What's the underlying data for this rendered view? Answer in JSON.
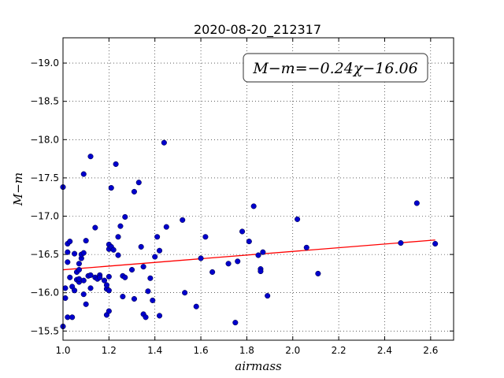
{
  "chart_data": {
    "type": "scatter",
    "title": "2020-08-20_212317",
    "xlabel": "airmass",
    "ylabel": "M−m",
    "xlim": [
      1.0,
      2.7
    ],
    "ylim": [
      -19.33,
      -15.38
    ],
    "y_inverted": true,
    "grid": true,
    "grid_style": "dotted",
    "x_ticks": [
      "1.0",
      "1.2",
      "1.4",
      "1.6",
      "1.8",
      "2.0",
      "2.2",
      "2.4",
      "2.6"
    ],
    "y_ticks": [
      "−15.5",
      "−16.0",
      "−16.5",
      "−17.0",
      "−17.5",
      "−18.0",
      "−18.5",
      "−19.0"
    ],
    "annotation": "M−m=−0.24χ−16.06",
    "fit": {
      "slope": -0.24,
      "intercept": -16.06,
      "x_range": [
        1.0,
        2.62
      ],
      "color": "#ff0000"
    },
    "marker_color": "#0000cc",
    "points": [
      [
        1.0,
        -15.56
      ],
      [
        1.0,
        -17.38
      ],
      [
        1.01,
        -15.93
      ],
      [
        1.01,
        -16.06
      ],
      [
        1.02,
        -15.68
      ],
      [
        1.02,
        -16.4
      ],
      [
        1.02,
        -16.53
      ],
      [
        1.02,
        -16.64
      ],
      [
        1.03,
        -16.67
      ],
      [
        1.03,
        -16.2
      ],
      [
        1.04,
        -15.68
      ],
      [
        1.04,
        -16.08
      ],
      [
        1.05,
        -16.03
      ],
      [
        1.05,
        -16.51
      ],
      [
        1.06,
        -16.17
      ],
      [
        1.06,
        -16.27
      ],
      [
        1.07,
        -16.3
      ],
      [
        1.07,
        -16.38
      ],
      [
        1.07,
        -16.14
      ],
      [
        1.07,
        -16.18
      ],
      [
        1.08,
        -16.45
      ],
      [
        1.08,
        -16.5
      ],
      [
        1.09,
        -16.16
      ],
      [
        1.09,
        -15.98
      ],
      [
        1.09,
        -16.52
      ],
      [
        1.09,
        -17.55
      ],
      [
        1.1,
        -16.68
      ],
      [
        1.1,
        -15.85
      ],
      [
        1.11,
        -16.22
      ],
      [
        1.12,
        -17.78
      ],
      [
        1.12,
        -16.06
      ],
      [
        1.12,
        -16.23
      ],
      [
        1.14,
        -16.85
      ],
      [
        1.14,
        -16.2
      ],
      [
        1.15,
        -16.18
      ],
      [
        1.16,
        -16.23
      ],
      [
        1.16,
        -16.2
      ],
      [
        1.18,
        -16.16
      ],
      [
        1.19,
        -15.71
      ],
      [
        1.19,
        -16.05
      ],
      [
        1.19,
        -16.1
      ],
      [
        1.2,
        -16.03
      ],
      [
        1.2,
        -16.21
      ],
      [
        1.2,
        -15.76
      ],
      [
        1.2,
        -16.57
      ],
      [
        1.2,
        -16.63
      ],
      [
        1.21,
        -16.6
      ],
      [
        1.21,
        -17.37
      ],
      [
        1.22,
        -16.56
      ],
      [
        1.23,
        -17.68
      ],
      [
        1.24,
        -16.49
      ],
      [
        1.24,
        -16.73
      ],
      [
        1.25,
        -16.87
      ],
      [
        1.26,
        -16.22
      ],
      [
        1.26,
        -15.95
      ],
      [
        1.27,
        -16.2
      ],
      [
        1.27,
        -16.99
      ],
      [
        1.3,
        -16.3
      ],
      [
        1.31,
        -15.92
      ],
      [
        1.31,
        -17.32
      ],
      [
        1.33,
        -17.44
      ],
      [
        1.34,
        -16.6
      ],
      [
        1.35,
        -15.72
      ],
      [
        1.35,
        -16.34
      ],
      [
        1.36,
        -15.68
      ],
      [
        1.37,
        -16.02
      ],
      [
        1.38,
        -16.19
      ],
      [
        1.39,
        -15.9
      ],
      [
        1.4,
        -16.47
      ],
      [
        1.41,
        -16.73
      ],
      [
        1.42,
        -16.55
      ],
      [
        1.42,
        -15.7
      ],
      [
        1.44,
        -17.96
      ],
      [
        1.45,
        -16.86
      ],
      [
        1.52,
        -16.95
      ],
      [
        1.53,
        -16.0
      ],
      [
        1.58,
        -15.82
      ],
      [
        1.6,
        -16.45
      ],
      [
        1.62,
        -16.73
      ],
      [
        1.65,
        -16.27
      ],
      [
        1.72,
        -16.38
      ],
      [
        1.75,
        -15.61
      ],
      [
        1.76,
        -16.41
      ],
      [
        1.78,
        -16.8
      ],
      [
        1.81,
        -16.67
      ],
      [
        1.83,
        -17.13
      ],
      [
        1.85,
        -16.49
      ],
      [
        1.86,
        -16.31
      ],
      [
        1.86,
        -16.28
      ],
      [
        1.87,
        -16.53
      ],
      [
        1.89,
        -15.96
      ],
      [
        2.02,
        -16.96
      ],
      [
        2.06,
        -16.59
      ],
      [
        2.11,
        -16.25
      ],
      [
        2.47,
        -16.65
      ],
      [
        2.54,
        -17.17
      ],
      [
        2.62,
        -16.64
      ]
    ]
  }
}
